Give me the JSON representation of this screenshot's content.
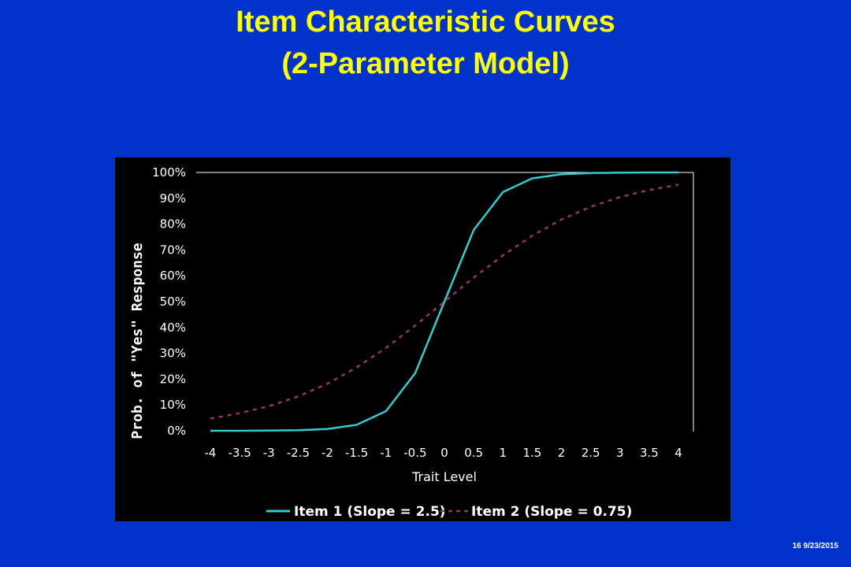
{
  "slide": {
    "title_line1": "Item Characteristic Curves",
    "title_line2": "(2-Parameter Model)",
    "footer": "16 9/23/2015"
  },
  "colors": {
    "background": "#0033cc",
    "title": "#ffff00",
    "chart_bg": "#000000",
    "series1": "#33cccc",
    "series2": "#993366"
  },
  "chart_data": {
    "type": "line",
    "title": "",
    "xlabel": "Trait Level",
    "ylabel": "Prob. of \"Yes\" Response",
    "xlim": [
      -4,
      4
    ],
    "ylim": [
      0,
      1
    ],
    "x_tick_labels": [
      "-4",
      "-3.5",
      "-3",
      "-2.5",
      "-2",
      "-1.5",
      "-1",
      "-0.5",
      "0",
      "0.5",
      "1",
      "1.5",
      "2",
      "2.5",
      "3",
      "3.5",
      "4"
    ],
    "y_tick_labels": [
      "0%",
      "10%",
      "20%",
      "30%",
      "40%",
      "50%",
      "60%",
      "70%",
      "80%",
      "90%",
      "100%"
    ],
    "grid": false,
    "legend_position": "bottom",
    "x": [
      -4,
      -3.5,
      -3,
      -2.5,
      -2,
      -1.5,
      -1,
      -0.5,
      0,
      0.5,
      1,
      1.5,
      2,
      2.5,
      3,
      3.5,
      4
    ],
    "series": [
      {
        "name": "Item 1 (Slope = 2.5)",
        "style": "solid",
        "values": [
          0.0,
          0.0,
          0.001,
          0.002,
          0.007,
          0.023,
          0.076,
          0.223,
          0.5,
          0.777,
          0.924,
          0.977,
          0.993,
          0.998,
          0.999,
          1.0,
          1.0
        ]
      },
      {
        "name": "Item 2 (Slope = 0.75)",
        "style": "dashed",
        "values": [
          0.047,
          0.068,
          0.095,
          0.133,
          0.182,
          0.245,
          0.321,
          0.407,
          0.5,
          0.593,
          0.679,
          0.755,
          0.818,
          0.867,
          0.905,
          0.932,
          0.953
        ]
      }
    ]
  }
}
